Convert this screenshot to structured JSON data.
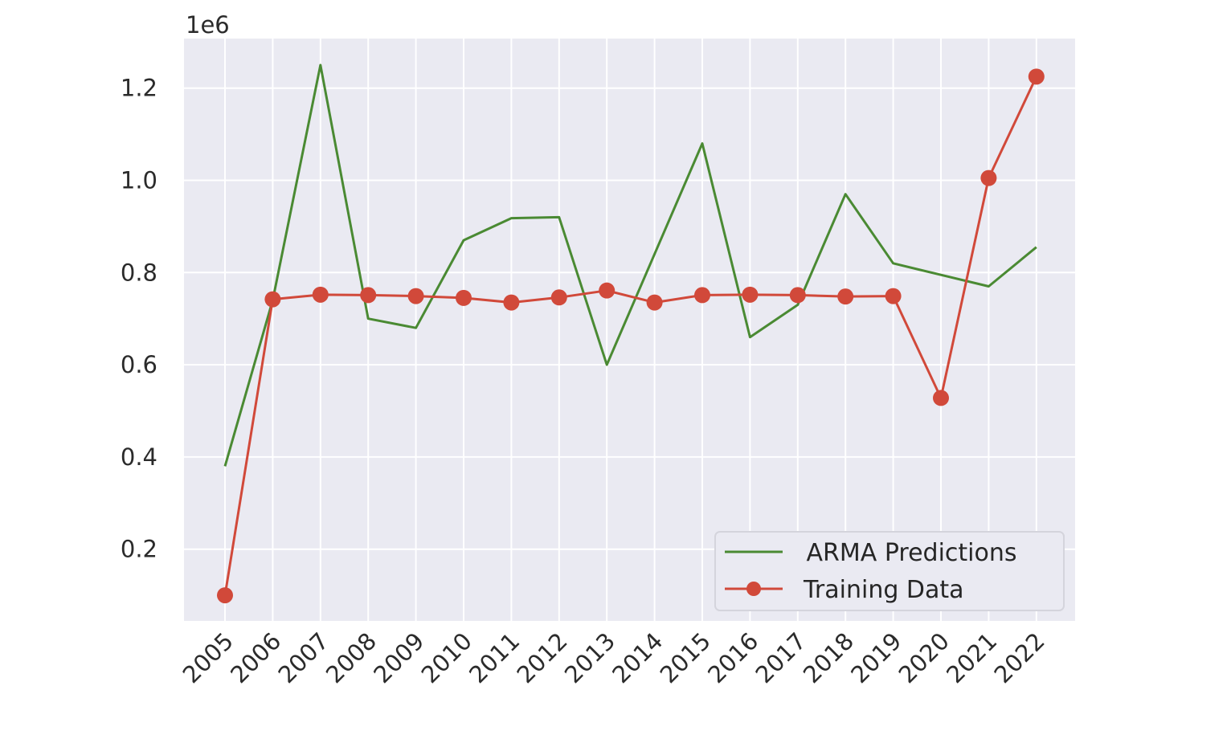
{
  "chart_data": {
    "type": "line",
    "title": "",
    "xlabel": "",
    "ylabel": "",
    "y_offset_label": "1e6",
    "y_scale_factor": 1000000,
    "categories": [
      "2005",
      "2006",
      "2007",
      "2008",
      "2009",
      "2010",
      "2011",
      "2012",
      "2013",
      "2014",
      "2015",
      "2016",
      "2017",
      "2018",
      "2019",
      "2020",
      "2021",
      "2022"
    ],
    "ylim": [
      0,
      1300000
    ],
    "yticks": [
      200000,
      400000,
      600000,
      800000,
      1000000,
      1200000
    ],
    "ytick_labels": [
      "0.2",
      "0.4",
      "0.6",
      "0.8",
      "1.0",
      "1.2"
    ],
    "grid": true,
    "legend_position": "lower right",
    "series": [
      {
        "name": " ARMA Predictions",
        "color": "#4a8a33",
        "marker": "none",
        "values": [
          380000,
          740000,
          1250000,
          700000,
          680000,
          870000,
          918000,
          920000,
          600000,
          840000,
          1080000,
          660000,
          730000,
          970000,
          820000,
          795000,
          770000,
          855000
        ]
      },
      {
        "name": "Training Data",
        "color": "#d1493a",
        "marker": "circle",
        "values": [
          100000,
          742000,
          752000,
          751000,
          749000,
          745000,
          735000,
          746000,
          761000,
          735000,
          751000,
          752000,
          751000,
          748000,
          749000,
          528000,
          1005000,
          1225000
        ]
      }
    ]
  }
}
